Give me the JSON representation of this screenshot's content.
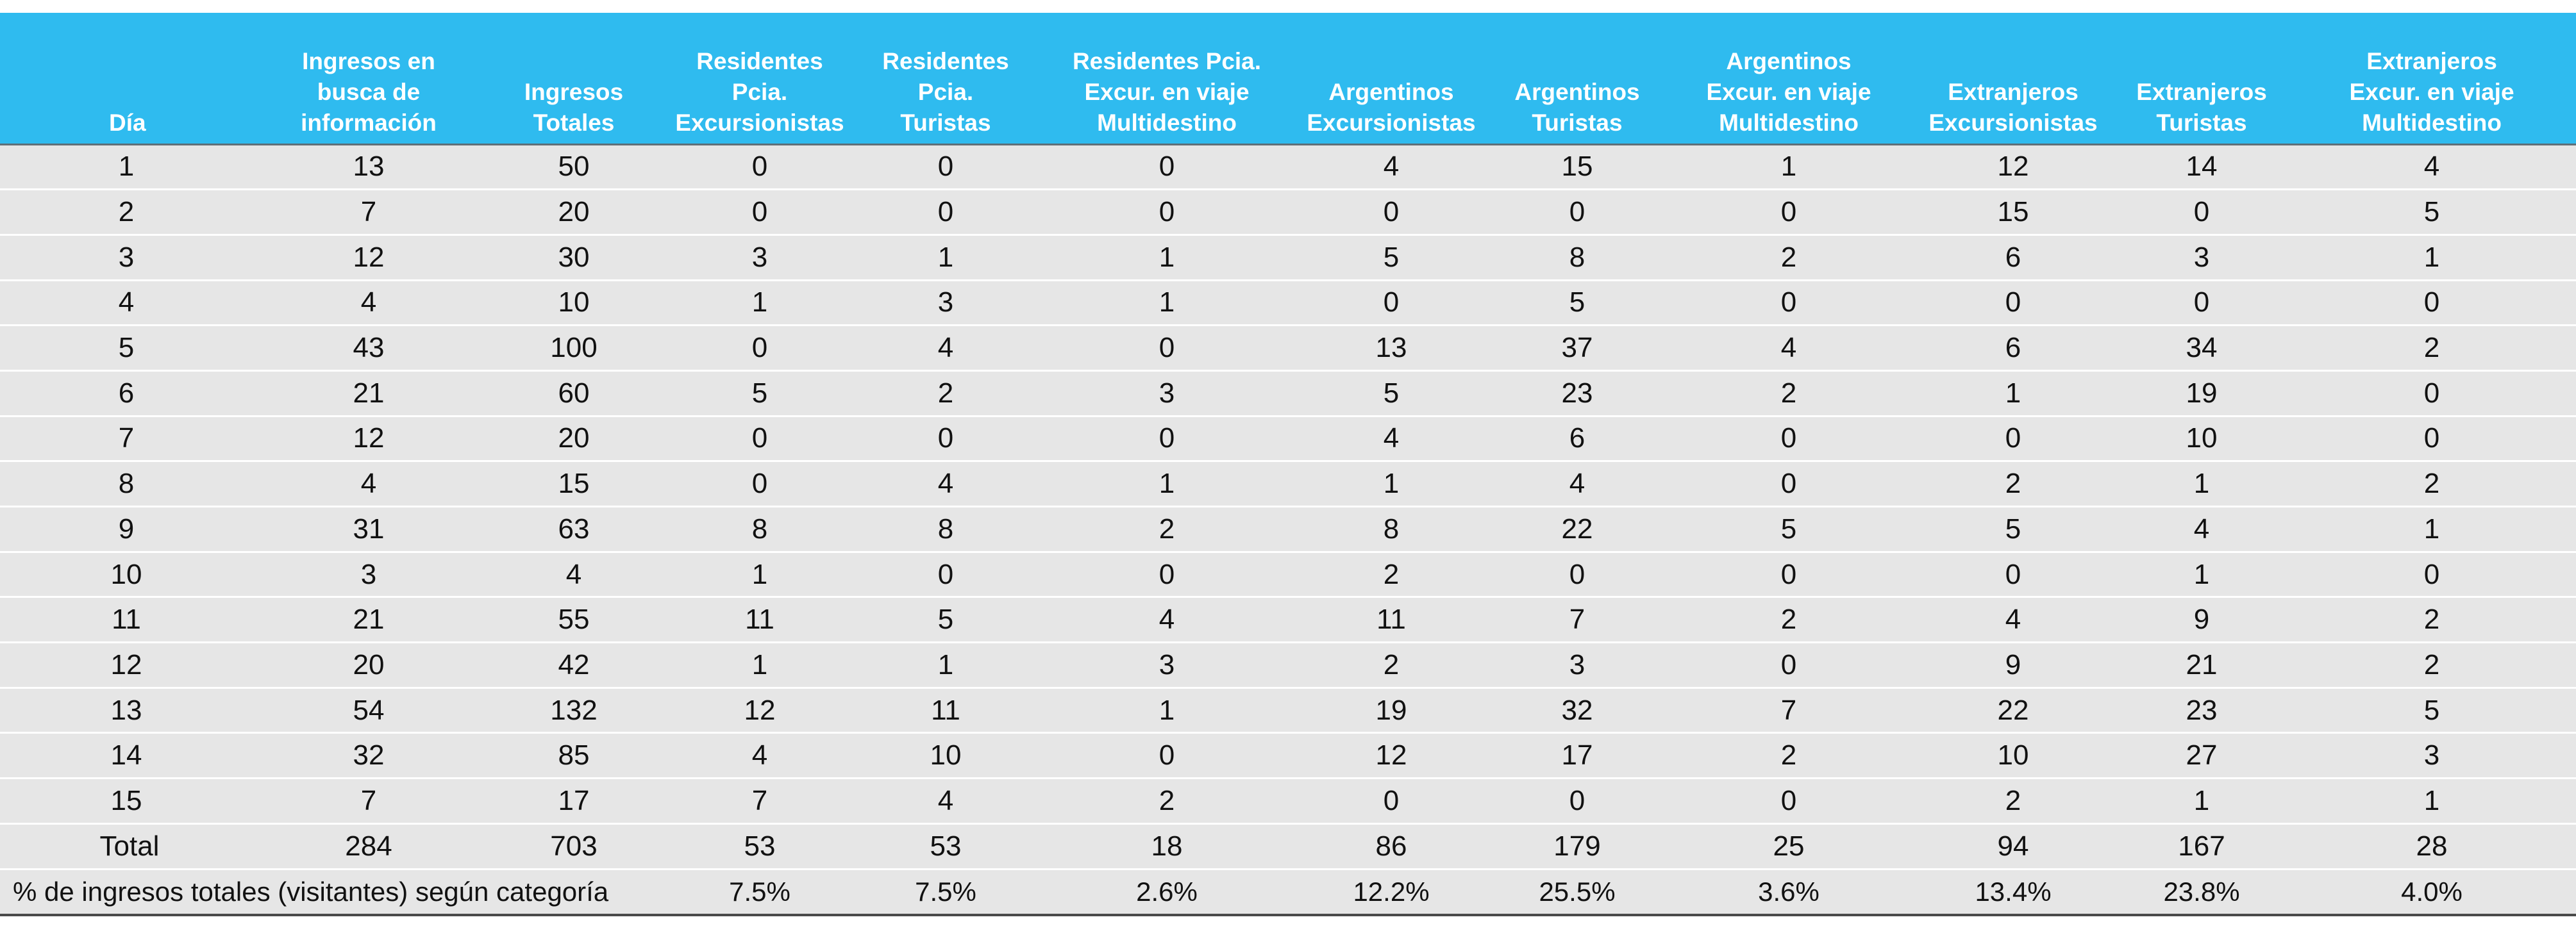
{
  "table": {
    "headers": [
      "Día",
      "Ingresos en\nbusca de\ninformación",
      "Ingresos\nTotales",
      "Residentes\nPcia.\nExcursionistas",
      "Residentes\nPcia.\nTuristas",
      "Residentes Pcia.\nExcur. en viaje\nMultidestino",
      "Argentinos\nExcursionistas",
      "Argentinos\nTuristas",
      "Argentinos\nExcur. en viaje\nMultidestino",
      "Extranjeros\nExcursionistas",
      "Extranjeros\nTuristas",
      "Extranjeros\nExcur. en viaje\nMultidestino"
    ],
    "rows": [
      [
        "1",
        "13",
        "50",
        "0",
        "0",
        "0",
        "4",
        "15",
        "1",
        "12",
        "14",
        "4"
      ],
      [
        "2",
        "7",
        "20",
        "0",
        "0",
        "0",
        "0",
        "0",
        "0",
        "15",
        "0",
        "5"
      ],
      [
        "3",
        "12",
        "30",
        "3",
        "1",
        "1",
        "5",
        "8",
        "2",
        "6",
        "3",
        "1"
      ],
      [
        "4",
        "4",
        "10",
        "1",
        "3",
        "1",
        "0",
        "5",
        "0",
        "0",
        "0",
        "0"
      ],
      [
        "5",
        "43",
        "100",
        "0",
        "4",
        "0",
        "13",
        "37",
        "4",
        "6",
        "34",
        "2"
      ],
      [
        "6",
        "21",
        "60",
        "5",
        "2",
        "3",
        "5",
        "23",
        "2",
        "1",
        "19",
        "0"
      ],
      [
        "7",
        "12",
        "20",
        "0",
        "0",
        "0",
        "4",
        "6",
        "0",
        "0",
        "10",
        "0"
      ],
      [
        "8",
        "4",
        "15",
        "0",
        "4",
        "1",
        "1",
        "4",
        "0",
        "2",
        "1",
        "2"
      ],
      [
        "9",
        "31",
        "63",
        "8",
        "8",
        "2",
        "8",
        "22",
        "5",
        "5",
        "4",
        "1"
      ],
      [
        "10",
        "3",
        "4",
        "1",
        "0",
        "0",
        "2",
        "0",
        "0",
        "0",
        "1",
        "0"
      ],
      [
        "11",
        "21",
        "55",
        "11",
        "5",
        "4",
        "11",
        "7",
        "2",
        "4",
        "9",
        "2"
      ],
      [
        "12",
        "20",
        "42",
        "1",
        "1",
        "3",
        "2",
        "3",
        "0",
        "9",
        "21",
        "2"
      ],
      [
        "13",
        "54",
        "132",
        "12",
        "11",
        "1",
        "19",
        "32",
        "7",
        "22",
        "23",
        "5"
      ],
      [
        "14",
        "32",
        "85",
        "4",
        "10",
        "0",
        "12",
        "17",
        "2",
        "10",
        "27",
        "3"
      ],
      [
        "15",
        "7",
        "17",
        "7",
        "4",
        "2",
        "0",
        "0",
        "0",
        "2",
        "1",
        "1"
      ]
    ],
    "total": [
      "Total",
      "284",
      "703",
      "53",
      "53",
      "18",
      "86",
      "179",
      "25",
      "94",
      "167",
      "28"
    ],
    "percent_label": "% de ingresos totales (visitantes) según categoría",
    "percent_values": [
      "7.5%",
      "7.5%",
      "2.6%",
      "12.2%",
      "25.5%",
      "3.6%",
      "13.4%",
      "23.8%",
      "4.0%"
    ]
  },
  "colors": {
    "header_bg": "#2fbbef",
    "header_text": "#ffffff",
    "row_bg": "#e6e6e6"
  }
}
